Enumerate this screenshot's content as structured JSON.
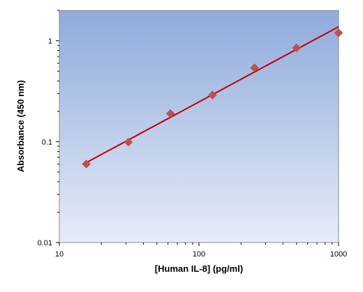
{
  "chart_data": {
    "type": "scatter",
    "title": "",
    "xlabel": "[Human IL-8] (pg/ml)",
    "ylabel": "Absorbance (450 nm)",
    "x_scale": "log",
    "y_scale": "log",
    "xlim": [
      10,
      1000
    ],
    "ylim": [
      0.01,
      2
    ],
    "x_ticks": [
      {
        "value": 10,
        "label": "10"
      },
      {
        "value": 100,
        "label": "100"
      },
      {
        "value": 1000,
        "label": "1000"
      }
    ],
    "y_ticks": [
      {
        "value": 0.01,
        "label": "0.01"
      },
      {
        "value": 0.1,
        "label": "0.1"
      },
      {
        "value": 1,
        "label": "1"
      }
    ],
    "grid": false,
    "legend": "none",
    "series": [
      {
        "x": [
          15.6,
          31.25,
          62.5,
          125,
          250,
          500,
          1000
        ],
        "y": [
          0.06,
          0.099,
          0.19,
          0.29,
          0.54,
          0.85,
          1.2
        ],
        "marker": "diamond",
        "color": "#c0504d"
      }
    ],
    "fit_line": {
      "x": [
        15.6,
        1000
      ],
      "y": [
        0.062,
        1.38
      ],
      "color": "#c00000"
    },
    "colors": {
      "plot_bg_top": "#8faadc",
      "plot_bg_bottom": "#e6ecf7",
      "marker": "#c0504d",
      "line": "#c00000"
    }
  }
}
